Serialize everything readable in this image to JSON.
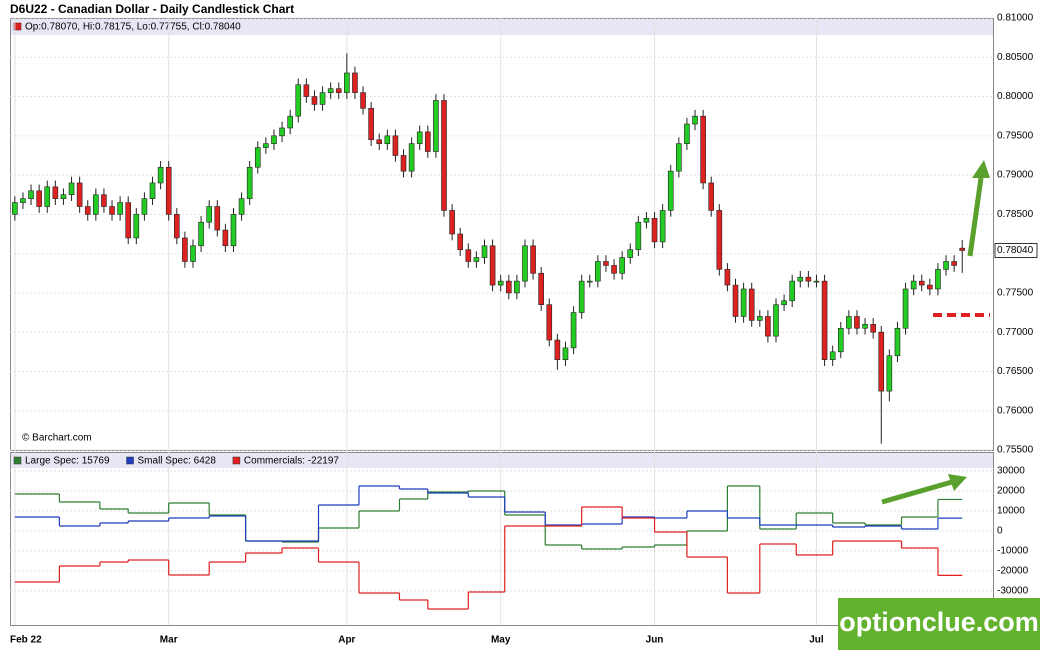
{
  "chart_data": [
    {
      "type": "candlestick",
      "title": "D6U22 - Canadian Dollar - Daily Candlestick Chart",
      "legend_text": "Op:0.78070, Hi:0.78175, Lo:0.77755, Cl:0.78040",
      "last_price_label": "0.78040",
      "credit": "© Barchart.com",
      "up_color": "#22cc22",
      "down_color": "#dd2222",
      "xlim": [
        -0.6,
        120.8
      ],
      "xticks": [
        {
          "value": 0,
          "label": "Feb 22"
        },
        {
          "value": 19,
          "label": "Mar"
        },
        {
          "value": 41,
          "label": "Apr"
        },
        {
          "value": 60,
          "label": "May"
        },
        {
          "value": 79,
          "label": "Jun"
        },
        {
          "value": 99,
          "label": "Jul"
        }
      ],
      "ylim": [
        0.755,
        0.81
      ],
      "yticks": [
        {
          "value": 0.755,
          "label": "0.75500"
        },
        {
          "value": 0.76,
          "label": "0.76000"
        },
        {
          "value": 0.765,
          "label": "0.76500"
        },
        {
          "value": 0.77,
          "label": "0.77000"
        },
        {
          "value": 0.775,
          "label": "0.77500"
        },
        {
          "value": 0.78,
          "label": "0.78000"
        },
        {
          "value": 0.785,
          "label": "0.78500"
        },
        {
          "value": 0.79,
          "label": "0.79000"
        },
        {
          "value": 0.795,
          "label": "0.79500"
        },
        {
          "value": 0.8,
          "label": "0.80000"
        },
        {
          "value": 0.805,
          "label": "0.80500"
        },
        {
          "value": 0.81,
          "label": "0.81000"
        }
      ],
      "open": [
        0.785,
        0.7865,
        0.787,
        0.788,
        0.786,
        0.7885,
        0.787,
        0.7875,
        0.789,
        0.786,
        0.785,
        0.7875,
        0.786,
        0.785,
        0.7865,
        0.782,
        0.785,
        0.787,
        0.789,
        0.791,
        0.785,
        0.782,
        0.779,
        0.781,
        0.784,
        0.786,
        0.783,
        0.781,
        0.785,
        0.787,
        0.791,
        0.7935,
        0.794,
        0.795,
        0.796,
        0.7975,
        0.8015,
        0.8,
        0.799,
        0.8005,
        0.801,
        0.8005,
        0.803,
        0.8005,
        0.7985,
        0.7945,
        0.794,
        0.795,
        0.7925,
        0.7905,
        0.794,
        0.7955,
        0.793,
        0.7995,
        0.7855,
        0.7825,
        0.7805,
        0.779,
        0.7795,
        0.781,
        0.776,
        0.7765,
        0.775,
        0.7765,
        0.781,
        0.7775,
        0.7735,
        0.769,
        0.7665,
        0.768,
        0.7725,
        0.7765,
        0.7765,
        0.779,
        0.7785,
        0.7775,
        0.7795,
        0.7805,
        0.784,
        0.7845,
        0.7815,
        0.7855,
        0.7905,
        0.794,
        0.7965,
        0.7975,
        0.789,
        0.7855,
        0.778,
        0.776,
        0.772,
        0.7755,
        0.7715,
        0.772,
        0.7695,
        0.7735,
        0.774,
        0.7765,
        0.777,
        0.7765,
        0.7765,
        0.7665,
        0.7675,
        0.7705,
        0.772,
        0.7705,
        0.771,
        0.77,
        0.7625,
        0.767,
        0.7705,
        0.7755,
        0.7765,
        0.776,
        0.7755,
        0.778,
        0.779,
        0.7807
      ],
      "high": [
        0.7873,
        0.7878,
        0.7888,
        0.7888,
        0.7893,
        0.7893,
        0.7883,
        0.7898,
        0.7898,
        0.7868,
        0.7883,
        0.7883,
        0.7868,
        0.7873,
        0.7873,
        0.7858,
        0.7878,
        0.7898,
        0.7918,
        0.7918,
        0.7858,
        0.7828,
        0.7818,
        0.7848,
        0.7868,
        0.7868,
        0.7838,
        0.7858,
        0.7878,
        0.7918,
        0.7943,
        0.7948,
        0.7958,
        0.7968,
        0.7983,
        0.8023,
        0.8023,
        0.8008,
        0.8013,
        0.8018,
        0.8018,
        0.8055,
        0.8038,
        0.8013,
        0.7993,
        0.7953,
        0.7958,
        0.7958,
        0.7933,
        0.7948,
        0.7963,
        0.7963,
        0.8003,
        0.8003,
        0.7863,
        0.7833,
        0.7813,
        0.7803,
        0.7818,
        0.7818,
        0.7773,
        0.7773,
        0.7773,
        0.7818,
        0.7818,
        0.7783,
        0.7743,
        0.7698,
        0.7688,
        0.7733,
        0.7773,
        0.7773,
        0.7798,
        0.7798,
        0.7793,
        0.7803,
        0.7813,
        0.7848,
        0.7853,
        0.7853,
        0.7863,
        0.7913,
        0.7948,
        0.7973,
        0.7983,
        0.7983,
        0.7898,
        0.7863,
        0.7788,
        0.7768,
        0.7763,
        0.7763,
        0.7728,
        0.7728,
        0.7743,
        0.7748,
        0.7773,
        0.7778,
        0.7778,
        0.7773,
        0.7773,
        0.7683,
        0.7713,
        0.7728,
        0.7728,
        0.7718,
        0.7718,
        0.7708,
        0.7678,
        0.7713,
        0.7763,
        0.7773,
        0.7773,
        0.7768,
        0.7788,
        0.7798,
        0.7798,
        0.78175
      ],
      "low": [
        0.7842,
        0.7857,
        0.7862,
        0.7852,
        0.7852,
        0.7862,
        0.7862,
        0.7867,
        0.7852,
        0.7842,
        0.7842,
        0.7852,
        0.7842,
        0.7842,
        0.7812,
        0.7812,
        0.7842,
        0.7862,
        0.7882,
        0.7842,
        0.7812,
        0.7782,
        0.7782,
        0.7802,
        0.7832,
        0.7822,
        0.7802,
        0.7802,
        0.7842,
        0.7862,
        0.7902,
        0.7927,
        0.7932,
        0.7942,
        0.7952,
        0.7967,
        0.7992,
        0.7982,
        0.7982,
        0.7997,
        0.7997,
        0.7997,
        0.7997,
        0.7977,
        0.7937,
        0.7932,
        0.7932,
        0.7917,
        0.7897,
        0.7897,
        0.7932,
        0.7922,
        0.7922,
        0.7847,
        0.7817,
        0.7797,
        0.7782,
        0.7782,
        0.7787,
        0.7752,
        0.7752,
        0.7742,
        0.7742,
        0.7757,
        0.7767,
        0.7727,
        0.7682,
        0.7652,
        0.7657,
        0.7672,
        0.7717,
        0.7757,
        0.7757,
        0.7777,
        0.7767,
        0.7767,
        0.7787,
        0.7797,
        0.7832,
        0.7807,
        0.7807,
        0.7847,
        0.7897,
        0.7932,
        0.7957,
        0.7882,
        0.7847,
        0.7772,
        0.7752,
        0.7712,
        0.7712,
        0.7707,
        0.7707,
        0.7687,
        0.7687,
        0.7727,
        0.7732,
        0.7757,
        0.7757,
        0.7757,
        0.7657,
        0.7657,
        0.7667,
        0.7697,
        0.7697,
        0.7697,
        0.7692,
        0.7558,
        0.7612,
        0.7662,
        0.7697,
        0.7747,
        0.7752,
        0.7747,
        0.7747,
        0.7772,
        0.7777,
        0.77755
      ],
      "close": [
        0.7865,
        0.787,
        0.788,
        0.786,
        0.7885,
        0.787,
        0.7875,
        0.789,
        0.786,
        0.785,
        0.7875,
        0.786,
        0.785,
        0.7865,
        0.782,
        0.785,
        0.787,
        0.789,
        0.791,
        0.785,
        0.782,
        0.779,
        0.781,
        0.784,
        0.786,
        0.783,
        0.781,
        0.785,
        0.787,
        0.791,
        0.7935,
        0.794,
        0.795,
        0.796,
        0.7975,
        0.8015,
        0.8,
        0.799,
        0.8005,
        0.801,
        0.8005,
        0.803,
        0.8005,
        0.7985,
        0.7945,
        0.794,
        0.795,
        0.7925,
        0.7905,
        0.794,
        0.7955,
        0.793,
        0.7995,
        0.7855,
        0.7825,
        0.7805,
        0.779,
        0.7795,
        0.781,
        0.776,
        0.7765,
        0.775,
        0.7765,
        0.781,
        0.7775,
        0.7735,
        0.769,
        0.7665,
        0.768,
        0.7725,
        0.7765,
        0.7765,
        0.779,
        0.7785,
        0.7775,
        0.7795,
        0.7805,
        0.784,
        0.7845,
        0.7815,
        0.7855,
        0.7905,
        0.794,
        0.7965,
        0.7975,
        0.789,
        0.7855,
        0.778,
        0.776,
        0.772,
        0.7755,
        0.7715,
        0.772,
        0.7695,
        0.7735,
        0.774,
        0.7765,
        0.777,
        0.7765,
        0.7765,
        0.7665,
        0.7675,
        0.7705,
        0.772,
        0.7705,
        0.771,
        0.77,
        0.7625,
        0.767,
        0.7705,
        0.7755,
        0.7765,
        0.776,
        0.7755,
        0.778,
        0.779,
        0.7785,
        0.7804
      ]
    },
    {
      "type": "step",
      "xlim": [
        -0.6,
        120.8
      ],
      "xend": 117,
      "ylim": [
        -47000,
        39500
      ],
      "yticks": [
        30000,
        20000,
        10000,
        0,
        -10000,
        -20000,
        -30000
      ],
      "x": [
        0,
        5.5,
        10.5,
        14,
        19,
        24,
        28.5,
        33,
        37.5,
        42.5,
        47.5,
        51,
        56,
        60.5,
        65.5,
        70,
        75,
        79,
        83,
        88,
        92,
        96.5,
        101,
        105,
        109.5,
        114
      ],
      "series": [
        {
          "name": "Large Spec: 15769",
          "color": "#2e7d32",
          "values": [
            18500,
            14500,
            11000,
            9000,
            14000,
            8000,
            -5000,
            -5500,
            1500,
            10000,
            16000,
            19500,
            20000,
            8000,
            -7000,
            -9000,
            -8000,
            -7000,
            0,
            22500,
            1000,
            9000,
            4000,
            3000,
            7000,
            15769
          ]
        },
        {
          "name": "Small Spec: 6428",
          "color": "#1f3fbf",
          "values": [
            7000,
            2500,
            4000,
            5000,
            6500,
            7500,
            -5000,
            -5000,
            13000,
            22500,
            21000,
            19000,
            17000,
            9500,
            3000,
            3500,
            7000,
            6500,
            10000,
            6500,
            3000,
            3000,
            2000,
            2500,
            1000,
            6428
          ]
        },
        {
          "name": "Commercials: -22197",
          "color": "#e02020",
          "values": [
            -25500,
            -17500,
            -15500,
            -14500,
            -22000,
            -15500,
            -11000,
            -8500,
            -15500,
            -31000,
            -34500,
            -39000,
            -30500,
            2500,
            2500,
            12000,
            6500,
            -500,
            -13000,
            -31000,
            -6500,
            -12000,
            -5000,
            -5000,
            -8500,
            -22197
          ]
        }
      ]
    }
  ],
  "watermark": "optionclue.com"
}
